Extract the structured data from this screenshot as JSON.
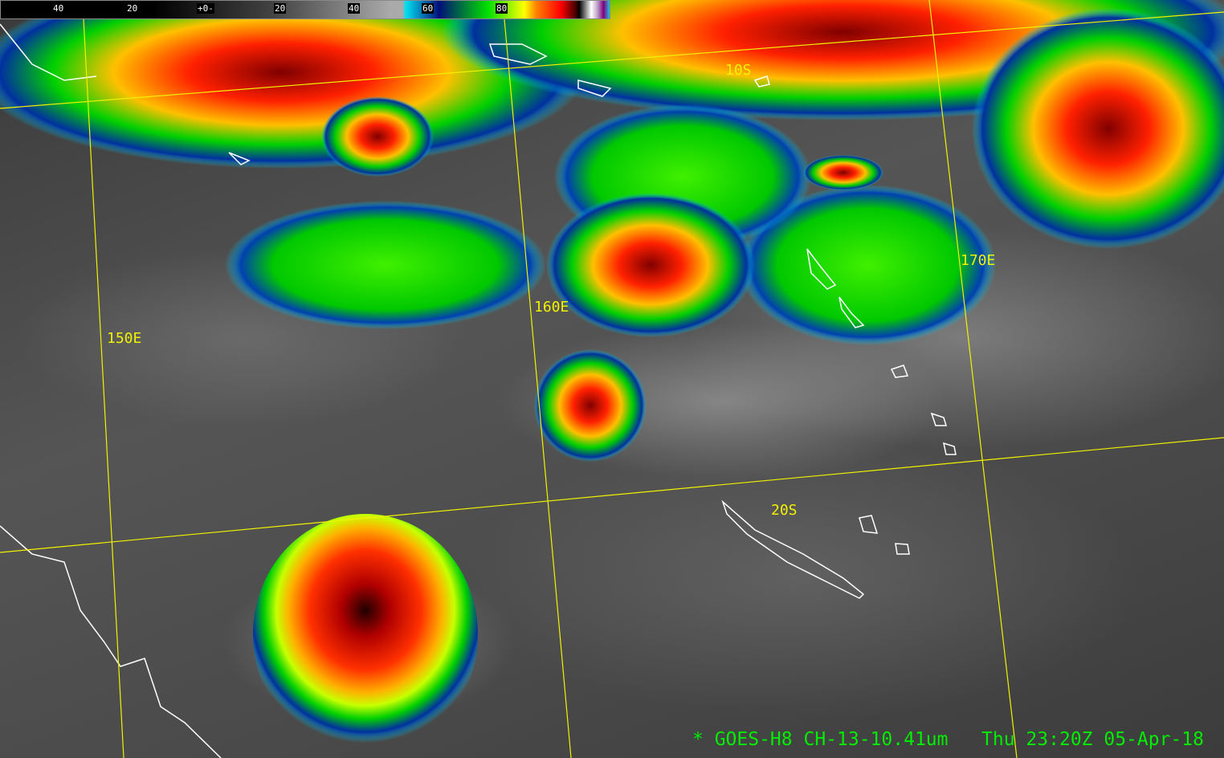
{
  "colorbar": {
    "ticks": [
      "40",
      "20",
      "+0-",
      "20",
      "40",
      "60",
      "80"
    ],
    "colors": {
      "gray_low": "#000000",
      "gray_high": "#aaaaaa",
      "cyan": "#00e0f0",
      "navy": "#00107a",
      "green": "#00e000",
      "yellow": "#ffff00",
      "red": "#ff0000",
      "purple": "#800080"
    }
  },
  "grid_labels": {
    "lon_150": "150E",
    "lon_160": "160E",
    "lon_170": "170E",
    "lat_10": "10S",
    "lat_20": "20S"
  },
  "grid_color": "#f2f200",
  "coastline_color": "#ffffff",
  "footer": {
    "product": "* GOES-H8 CH-13-10.41um",
    "timestamp": "Thu 23:20Z 05-Apr-18"
  }
}
